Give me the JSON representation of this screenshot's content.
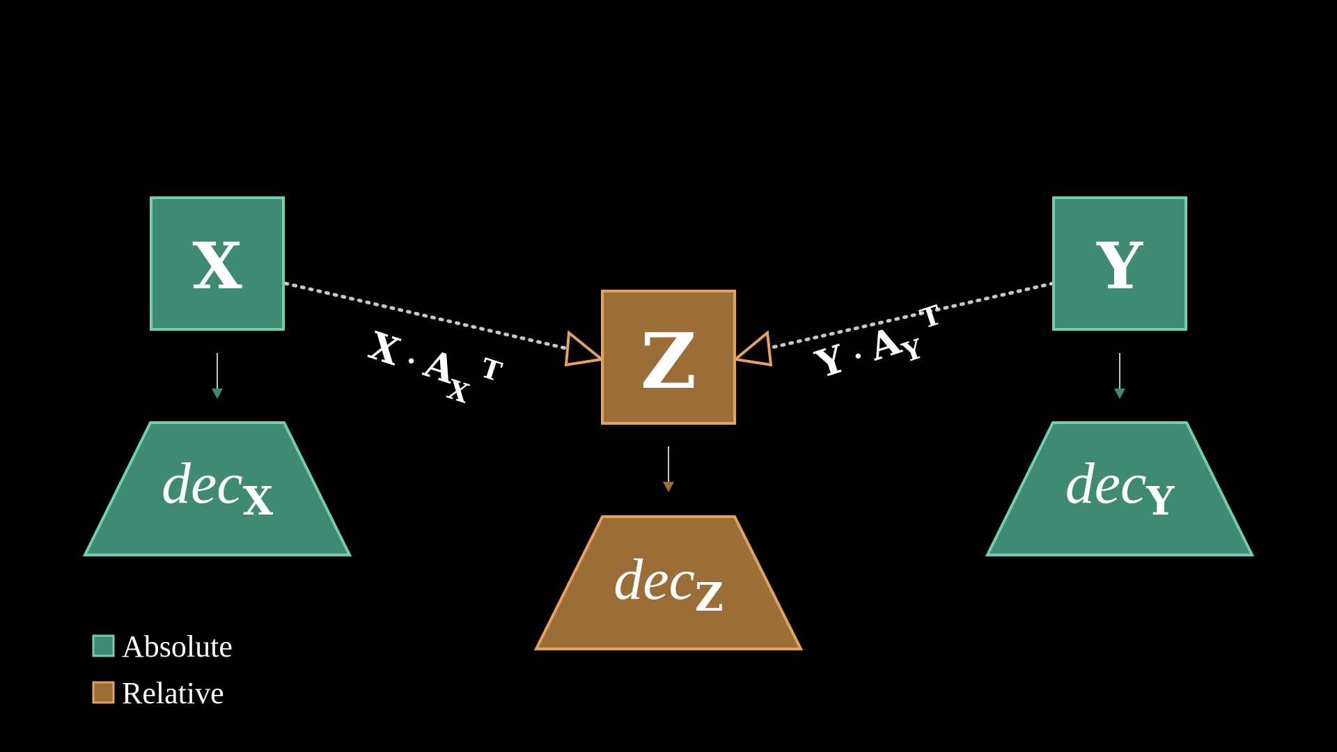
{
  "colors": {
    "background": "#000000",
    "absolute_fill": "#3e8a73",
    "absolute_stroke": "#6fcfb0",
    "relative_fill": "#9b6e38",
    "relative_stroke": "#e3a35c",
    "connector": "#c8c8c8",
    "text": "#ffffff"
  },
  "nodes": {
    "x": {
      "label": "X",
      "kind": "absolute"
    },
    "y": {
      "label": "Y",
      "kind": "absolute"
    },
    "z": {
      "label": "Z",
      "kind": "relative"
    }
  },
  "decoders": {
    "x": {
      "base": "dec",
      "sub": "X",
      "kind": "absolute"
    },
    "y": {
      "base": "dec",
      "sub": "Y",
      "kind": "absolute"
    },
    "z": {
      "base": "dec",
      "sub": "Z",
      "kind": "relative"
    }
  },
  "edges": {
    "x_to_z": {
      "var": "X",
      "dot": "·",
      "mat": "A",
      "sub": "X",
      "sup": "T"
    },
    "y_to_z": {
      "var": "Y",
      "dot": "·",
      "mat": "A",
      "sub": "Y",
      "sup": "T"
    }
  },
  "legend": {
    "absolute": "Absolute",
    "relative": "Relative"
  }
}
